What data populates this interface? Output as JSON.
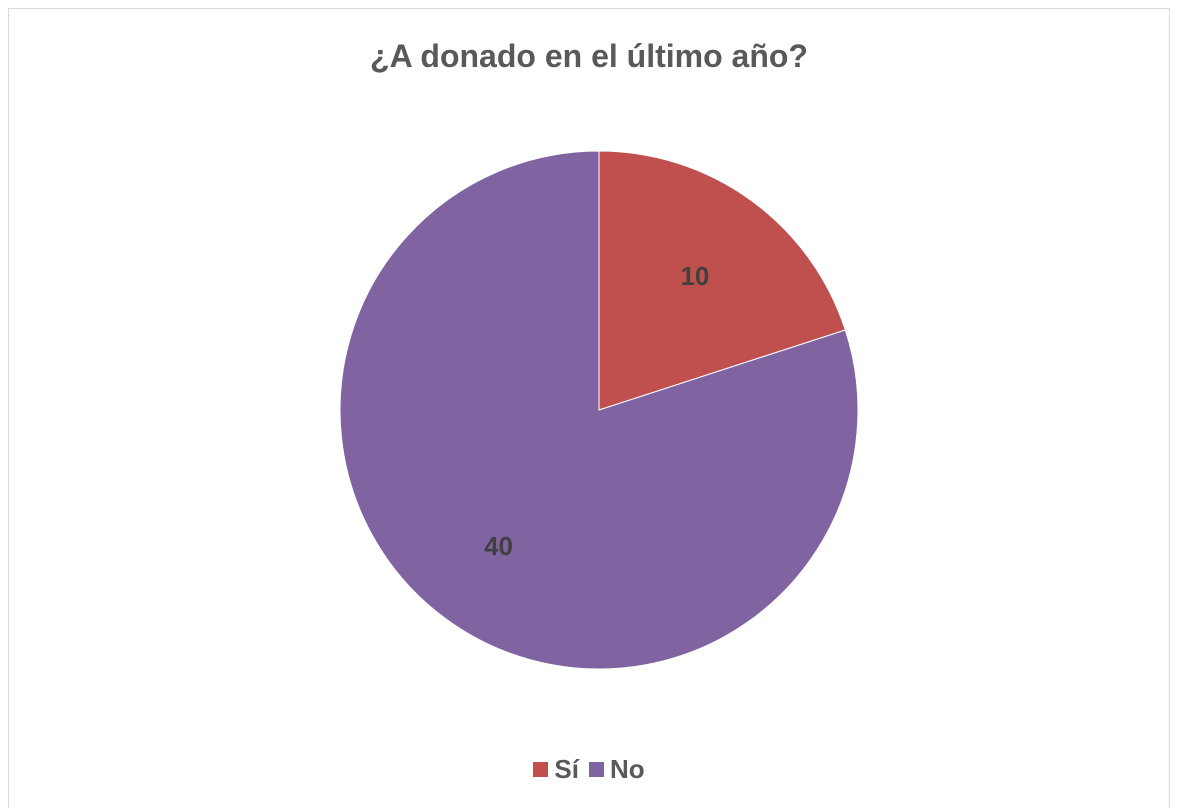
{
  "chart_data": {
    "type": "pie",
    "title": "¿A donado en el último año?",
    "categories": [
      "Sí",
      "No"
    ],
    "values": [
      10,
      40
    ],
    "colors": [
      "#C0504D",
      "#8064A2"
    ],
    "data_labels": [
      "10",
      "40"
    ],
    "legend": {
      "placement": "bottom",
      "entries": [
        "Sí",
        "No"
      ]
    },
    "start_angle": "12 o'clock",
    "direction": "clockwise"
  }
}
